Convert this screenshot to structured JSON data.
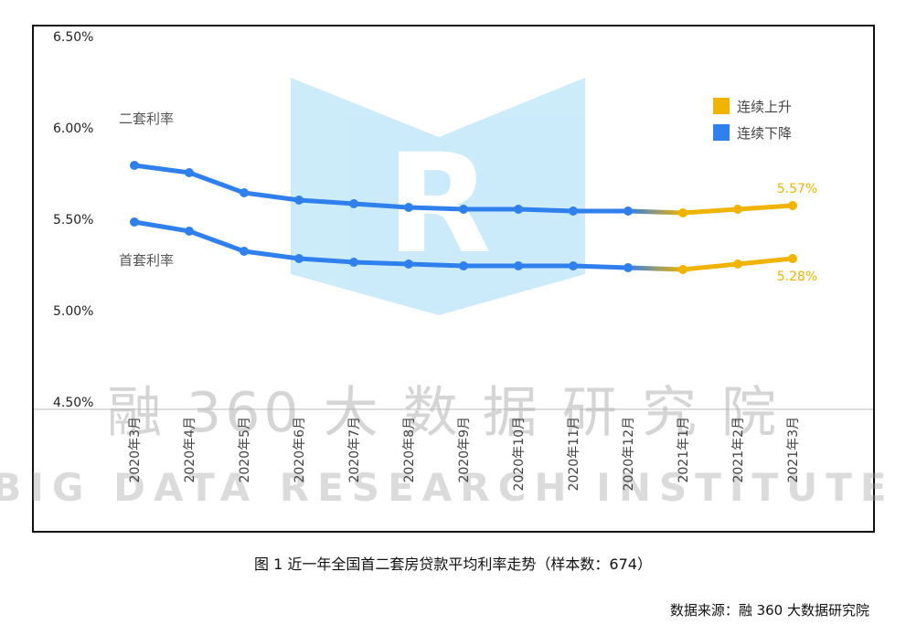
{
  "chart_data": {
    "type": "line",
    "categories": [
      "2020年3月",
      "2020年4月",
      "2020年5月",
      "2020年6月",
      "2020年7月",
      "2020年8月",
      "2020年9月",
      "2020年10月",
      "2020年11月",
      "2020年12月",
      "2021年1月",
      "2021年2月",
      "2021年3月"
    ],
    "series": [
      {
        "name": "二套利率",
        "values": [
          5.79,
          5.75,
          5.64,
          5.6,
          5.58,
          5.56,
          5.55,
          5.55,
          5.54,
          5.54,
          5.53,
          5.55,
          5.57
        ],
        "end_label": "5.57%"
      },
      {
        "name": "首套利率",
        "values": [
          5.48,
          5.43,
          5.32,
          5.28,
          5.26,
          5.25,
          5.24,
          5.24,
          5.24,
          5.23,
          5.22,
          5.25,
          5.28
        ],
        "end_label": "5.28%"
      }
    ],
    "yticks": [
      "6.50%",
      "6.00%",
      "5.50%",
      "5.00%",
      "4.50%"
    ],
    "ylim": [
      4.5,
      6.5
    ],
    "legend": [
      {
        "label": "连续上升",
        "color": "#f0b400"
      },
      {
        "label": "连续下降",
        "color": "#2f80ed"
      }
    ],
    "legend_position": "top-right",
    "grid": false,
    "rising_from_index": 10
  },
  "watermark": {
    "cn": "融 360 大 数 据 研 究 院",
    "en": "BIG DATA RESEARCH INSTITUTE",
    "logo": "LR"
  },
  "caption": "图 1 近一年全国首二套房贷款平均利率走势（样本数：674）",
  "source": "数据来源：融 360 大数据研究院"
}
